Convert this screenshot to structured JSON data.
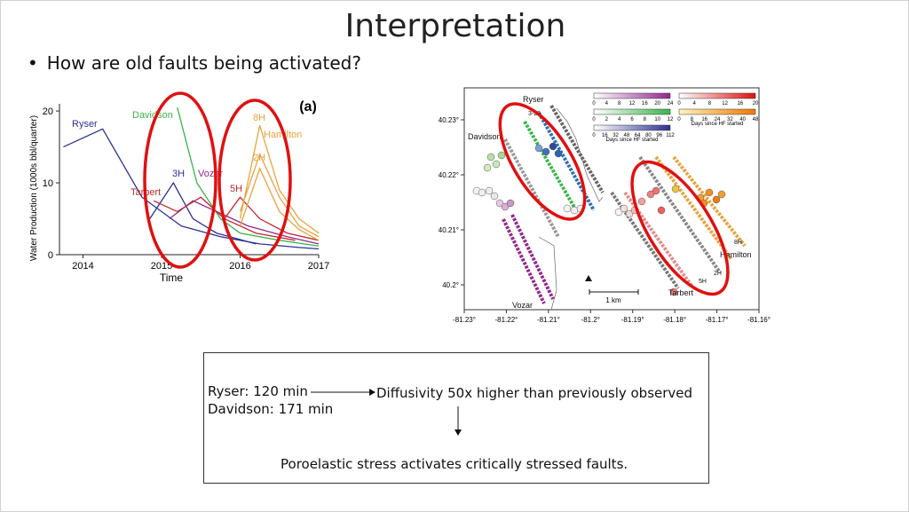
{
  "slide": {
    "title": "Interpretation",
    "bullet": "How are old faults being activated?"
  },
  "figure_a": {
    "panel_label": "(a)",
    "wells": [
      "Ryser",
      "Davidson",
      "3H",
      "Vozar",
      "Tarbert",
      "5H",
      "8H",
      "Hamilton",
      "2H"
    ],
    "colors": {
      "ryser": "#2e3192",
      "davidson": "#39b54a",
      "tarbert": "#c1272d",
      "vozar": "#93278f",
      "hamilton": "#e8a33d",
      "highlight": "#e01010"
    }
  },
  "figure_b": {
    "well_labels": [
      "Ryser",
      "3-25",
      "Davidson",
      "Vozar",
      "Tarbert",
      "5H",
      "2H",
      "8H",
      "Hamilton"
    ],
    "scale_bar": "1 km",
    "colorbar_caption_left": "Days since HF started",
    "colorbar_caption_right": "Days since HF started",
    "colorbar_ticks_purple": [
      "0",
      "4",
      "8",
      "12",
      "16",
      "20",
      "24"
    ],
    "colorbar_ticks_green": [
      "0",
      "2",
      "4",
      "6",
      "8",
      "10",
      "12"
    ],
    "colorbar_ticks_blue": [
      "0",
      "16",
      "32",
      "48",
      "64",
      "80",
      "96",
      "112"
    ],
    "colorbar_ticks_red": [
      "0",
      "4",
      "8",
      "12",
      "16",
      "20"
    ],
    "colorbar_ticks_orange": [
      "0",
      "8",
      "16",
      "24",
      "32",
      "40",
      "48"
    ]
  },
  "chart_data": [
    {
      "type": "line",
      "title": "",
      "xlabel": "Time",
      "ylabel": "Water Production (1000s bbl/quarter)",
      "xlim": [
        2013.7,
        2017
      ],
      "ylim": [
        0,
        21
      ],
      "x_ticks": [
        "2014",
        "2015",
        "2016",
        "2017"
      ],
      "y_ticks": [
        "0",
        "10",
        "20"
      ],
      "series": [
        {
          "name": "Ryser",
          "color": "#2e3192",
          "x": [
            2013.75,
            2014.25,
            2014.75,
            2015.25,
            2015.75,
            2016.25,
            2016.75,
            2017.0
          ],
          "y": [
            15,
            17.5,
            8,
            4,
            2.5,
            1.5,
            1,
            0.8
          ]
        },
        {
          "name": "Davidson",
          "color": "#39b54a",
          "x": [
            2015.2,
            2015.45,
            2015.75,
            2016.0,
            2016.5,
            2017.0
          ],
          "y": [
            20.5,
            10,
            5,
            3,
            2,
            1.2
          ]
        },
        {
          "name": "3H",
          "color": "#2e3192",
          "x": [
            2014.85,
            2015.15,
            2015.4,
            2015.7,
            2016.2
          ],
          "y": [
            5,
            10,
            5,
            3,
            1.5
          ]
        },
        {
          "name": "Vozar",
          "color": "#93278f",
          "x": [
            2015.1,
            2015.4,
            2015.7,
            2016.1,
            2016.6,
            2017.0
          ],
          "y": [
            5,
            7.5,
            6,
            4,
            2.5,
            1.5
          ]
        },
        {
          "name": "Tarbert",
          "color": "#c1272d",
          "x": [
            2014.9,
            2015.2,
            2015.5,
            2015.8,
            2016.2,
            2016.7
          ],
          "y": [
            7.5,
            6,
            8,
            5,
            3,
            2
          ]
        },
        {
          "name": "5H",
          "color": "#c1272d",
          "x": [
            2015.8,
            2016.0,
            2016.25,
            2016.6,
            2017.0
          ],
          "y": [
            5,
            8,
            5,
            3,
            2
          ]
        },
        {
          "name": "8H",
          "color": "#e8a33d",
          "x": [
            2016.0,
            2016.25,
            2016.5,
            2016.75,
            2017.0
          ],
          "y": [
            5,
            18,
            9,
            5,
            3
          ]
        },
        {
          "name": "Hamilton",
          "color": "#e8a33d",
          "x": [
            2016.0,
            2016.25,
            2016.5,
            2016.75,
            2017.0
          ],
          "y": [
            6,
            14,
            8,
            4,
            2.5
          ]
        },
        {
          "name": "2H",
          "color": "#e8a33d",
          "x": [
            2016.0,
            2016.25,
            2016.5,
            2016.75,
            2017.0
          ],
          "y": [
            4,
            12,
            6,
            3.5,
            2
          ]
        }
      ]
    },
    {
      "type": "scatter",
      "title": "",
      "xlabel": "",
      "ylabel": "",
      "xlim": [
        -81.23,
        -81.16
      ],
      "ylim": [
        40.195,
        40.235
      ],
      "x_ticks": [
        "-81.23°",
        "-81.22°",
        "-81.21°",
        "-81.2°",
        "-81.19°",
        "-81.18°",
        "-81.17°",
        "-81.16°"
      ],
      "y_ticks": [
        "40.2°",
        "40.21°",
        "40.22°",
        "40.23°"
      ]
    }
  ],
  "summary_box": {
    "line1": "Ryser: 120 min",
    "line2": "Davidson: 171 min",
    "result": "Diffusivity 50x higher than previously observed",
    "conclusion": "Poroelastic stress activates critically stressed faults."
  }
}
